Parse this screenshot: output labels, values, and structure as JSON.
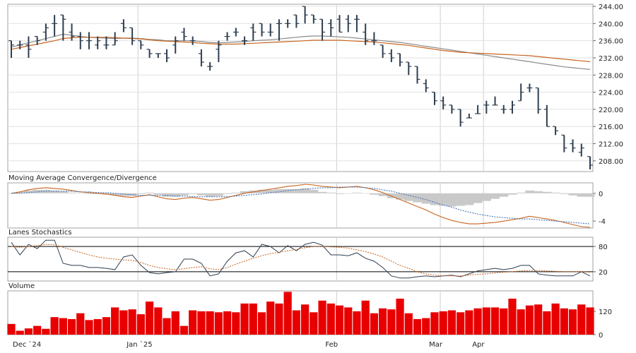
{
  "chart_data": [
    {
      "type": "ohlc",
      "panel": "price",
      "yticks": [
        208,
        212,
        216,
        220,
        224,
        228,
        232,
        236,
        240,
        244
      ],
      "ytick_labels": [
        "208.00",
        "212.00",
        "216.00",
        "220.00",
        "224.00",
        "228.00",
        "232.00",
        "236.00",
        "240.00",
        "244.00"
      ],
      "ylim": [
        205.5,
        244.5
      ],
      "xlabels": [
        "Dec `24",
        "Jan `25",
        "Feb",
        "Mar",
        "Apr"
      ],
      "xlabel_index": [
        0,
        15,
        38,
        50,
        55
      ],
      "bars": [
        [
          236,
          236,
          232,
          235
        ],
        [
          235,
          236,
          234,
          235
        ],
        [
          235,
          237,
          232,
          234
        ],
        [
          237,
          237,
          235,
          236
        ],
        [
          238,
          240,
          236,
          239
        ],
        [
          240,
          242,
          237,
          240
        ],
        [
          242,
          242,
          236,
          241
        ],
        [
          238,
          240,
          236,
          237
        ],
        [
          237,
          238,
          234,
          236
        ],
        [
          236,
          238,
          234,
          236
        ],
        [
          235,
          237,
          234,
          236
        ],
        [
          235,
          237,
          234,
          235
        ],
        [
          235,
          238,
          235,
          236
        ],
        [
          240,
          241,
          238,
          239
        ],
        [
          239,
          239,
          235,
          236
        ],
        [
          236,
          236,
          234,
          235
        ],
        [
          234,
          234,
          232,
          233
        ],
        [
          233,
          233,
          232,
          233
        ],
        [
          233,
          234,
          231,
          232
        ],
        [
          235,
          237,
          233,
          236
        ],
        [
          238,
          239,
          236,
          237
        ],
        [
          236,
          237,
          235,
          236
        ],
        [
          233,
          234,
          230,
          231
        ],
        [
          230,
          231,
          229,
          230
        ],
        [
          234,
          236,
          231,
          235
        ],
        [
          237,
          238,
          236,
          237
        ],
        [
          238,
          239,
          237,
          238
        ],
        [
          236,
          237,
          235,
          236
        ],
        [
          239,
          240,
          236,
          238
        ],
        [
          240,
          240,
          237,
          238
        ],
        [
          238,
          240,
          237,
          238
        ],
        [
          240,
          241,
          236,
          240
        ],
        [
          240,
          241,
          239,
          240
        ],
        [
          242,
          242,
          239,
          240
        ],
        [
          244,
          244,
          240,
          242
        ],
        [
          242,
          242,
          240,
          241
        ],
        [
          241,
          241,
          236,
          238
        ],
        [
          240,
          241,
          237,
          239
        ],
        [
          241,
          242,
          238,
          238
        ],
        [
          241,
          242,
          238,
          240
        ],
        [
          241,
          242,
          238,
          241
        ],
        [
          238,
          240,
          235,
          236
        ],
        [
          236,
          238,
          235,
          236
        ],
        [
          235,
          235,
          232,
          233
        ],
        [
          233,
          234,
          231,
          232
        ],
        [
          233,
          233,
          230,
          231
        ],
        [
          231,
          231,
          228,
          230
        ],
        [
          230,
          230,
          226,
          227
        ],
        [
          226,
          227,
          224,
          225
        ],
        [
          224,
          224,
          221,
          222
        ],
        [
          222,
          223,
          220,
          221
        ],
        [
          221,
          221,
          219,
          220
        ],
        [
          220,
          220,
          216,
          217
        ],
        [
          218,
          219,
          218,
          218
        ],
        [
          219,
          221,
          219,
          219
        ],
        [
          221,
          222,
          219,
          221
        ],
        [
          221,
          223,
          221,
          221
        ],
        [
          220,
          221,
          219,
          220
        ],
        [
          220,
          222,
          219,
          221
        ],
        [
          222,
          226,
          222,
          224
        ],
        [
          225,
          226,
          224,
          225
        ],
        [
          225,
          225,
          219,
          220
        ],
        [
          220,
          221,
          216,
          216
        ],
        [
          216,
          216,
          214,
          215
        ],
        [
          214,
          214,
          210,
          211
        ],
        [
          212,
          213,
          210,
          211
        ],
        [
          210,
          212,
          209,
          211
        ],
        [
          209,
          209,
          206,
          207
        ]
      ],
      "series": [
        {
          "values": [
            234.5,
            235.0,
            235.5,
            236.0,
            236.5,
            237.0,
            237.5,
            237.3,
            237.0,
            236.8,
            236.7,
            236.6,
            236.5,
            236.6,
            236.6,
            236.5,
            236.3,
            236.2,
            236.0,
            236.0,
            236.0,
            236.0,
            235.8,
            235.6,
            235.5,
            235.6,
            235.7,
            235.8,
            236.0,
            236.1,
            236.2,
            236.4,
            236.6,
            236.8,
            237.0,
            237.1,
            237.1,
            237.0,
            236.9,
            236.8,
            236.6,
            236.4,
            236.2,
            236.0,
            235.8,
            235.6,
            235.3,
            235.0,
            234.7,
            234.4,
            234.1,
            233.8,
            233.5,
            233.2,
            232.9,
            232.6,
            232.3,
            232.0,
            231.7,
            231.4,
            231.1,
            230.8,
            230.5,
            230.2,
            229.9,
            229.7,
            229.5,
            229.3
          ]
        },
        {
          "values": [
            234.0,
            234.4,
            234.8,
            235.2,
            235.6,
            236.0,
            236.5,
            236.7,
            236.8,
            236.8,
            236.8,
            236.8,
            236.7,
            236.6,
            236.5,
            236.4,
            236.2,
            236.0,
            235.9,
            235.8,
            235.7,
            235.6,
            235.4,
            235.3,
            235.2,
            235.2,
            235.2,
            235.3,
            235.4,
            235.5,
            235.6,
            235.7,
            235.8,
            235.9,
            236.0,
            236.1,
            236.1,
            236.1,
            236.1,
            236.0,
            235.9,
            235.8,
            235.7,
            235.5,
            235.3,
            235.1,
            234.9,
            234.6,
            234.3,
            234.0,
            233.7,
            233.5,
            233.3,
            233.2,
            233.1,
            233.0,
            232.9,
            232.8,
            232.7,
            232.6,
            232.5,
            232.3,
            232.1,
            231.9,
            231.7,
            231.5,
            231.3,
            231.1
          ]
        }
      ]
    },
    {
      "type": "line",
      "panel": "macd",
      "title": "Moving Average Convergence/Divergence",
      "yticks": [
        0,
        -4
      ],
      "ytick_labels": [
        "0",
        "-4"
      ],
      "ylim": [
        -5,
        1.5
      ],
      "series": [
        {
          "values": [
            0.0,
            0.2,
            0.5,
            0.7,
            0.8,
            0.7,
            0.6,
            0.4,
            0.2,
            0.1,
            0.0,
            -0.1,
            -0.3,
            -0.5,
            -0.6,
            -0.4,
            -0.2,
            -0.5,
            -0.8,
            -0.9,
            -0.7,
            -0.6,
            -0.8,
            -1.0,
            -0.9,
            -0.6,
            -0.3,
            0.0,
            0.2,
            0.4,
            0.6,
            0.8,
            1.0,
            1.1,
            1.3,
            1.2,
            1.0,
            0.9,
            0.8,
            0.9,
            1.0,
            0.8,
            0.5,
            0.1,
            -0.4,
            -0.9,
            -1.4,
            -1.9,
            -2.4,
            -3.0,
            -3.5,
            -3.9,
            -4.2,
            -4.4,
            -4.4,
            -4.3,
            -4.2,
            -4.0,
            -3.8,
            -3.6,
            -3.3,
            -3.5,
            -3.7,
            -3.9,
            -4.2,
            -4.5,
            -4.8,
            -4.9
          ]
        },
        {
          "values": [
            0.0,
            0.0,
            0.1,
            0.2,
            0.3,
            0.3,
            0.3,
            0.3,
            0.2,
            0.2,
            0.1,
            0.1,
            0.0,
            -0.1,
            -0.2,
            -0.3,
            -0.3,
            -0.3,
            -0.3,
            -0.4,
            -0.4,
            -0.5,
            -0.5,
            -0.5,
            -0.5,
            -0.5,
            -0.4,
            -0.3,
            -0.2,
            -0.1,
            0.1,
            0.2,
            0.4,
            0.5,
            0.6,
            0.7,
            0.8,
            0.8,
            0.9,
            0.9,
            0.9,
            0.8,
            0.7,
            0.5,
            0.3,
            0.0,
            -0.3,
            -0.6,
            -0.9,
            -1.3,
            -1.7,
            -2.0,
            -2.4,
            -2.7,
            -3.0,
            -3.2,
            -3.4,
            -3.5,
            -3.6,
            -3.7,
            -3.7,
            -3.8,
            -3.9,
            -4.0,
            -4.1,
            -4.2,
            -4.3,
            -4.4
          ]
        }
      ],
      "histogram": [
        0.0,
        0.2,
        0.4,
        0.5,
        0.5,
        0.4,
        0.3,
        0.1,
        0.0,
        -0.1,
        -0.1,
        -0.2,
        -0.3,
        -0.4,
        -0.4,
        -0.1,
        0.1,
        -0.2,
        -0.5,
        -0.5,
        -0.3,
        -0.1,
        -0.3,
        -0.5,
        -0.4,
        -0.1,
        0.1,
        0.3,
        0.4,
        0.5,
        0.5,
        0.6,
        0.6,
        0.6,
        0.7,
        0.5,
        0.2,
        0.1,
        -0.1,
        0.0,
        0.1,
        0.0,
        -0.2,
        -0.4,
        -0.7,
        -0.9,
        -1.1,
        -1.3,
        -1.5,
        -1.7,
        -1.8,
        -1.9,
        -1.8,
        -1.7,
        -1.4,
        -1.1,
        -0.8,
        -0.5,
        -0.2,
        0.1,
        0.4,
        0.3,
        0.2,
        0.1,
        -0.1,
        -0.3,
        -0.5,
        -0.5
      ]
    },
    {
      "type": "line",
      "panel": "stochastics",
      "title": "Lanes Stochastics",
      "yticks": [
        80,
        20
      ],
      "ytick_labels": [
        "80",
        "20"
      ],
      "ylim": [
        -2,
        102
      ],
      "series": [
        {
          "values": [
            90,
            60,
            85,
            75,
            95,
            95,
            40,
            35,
            35,
            30,
            30,
            28,
            25,
            55,
            60,
            35,
            18,
            15,
            18,
            20,
            50,
            50,
            40,
            10,
            15,
            45,
            65,
            70,
            55,
            85,
            80,
            65,
            82,
            70,
            85,
            90,
            83,
            60,
            60,
            58,
            65,
            52,
            45,
            30,
            10,
            5,
            5,
            8,
            10,
            8,
            10,
            12,
            8,
            15,
            22,
            25,
            28,
            25,
            28,
            35,
            35,
            15,
            12,
            10,
            10,
            10,
            20,
            10
          ]
        },
        {
          "values": [
            80,
            78,
            80,
            82,
            85,
            84,
            78,
            72,
            66,
            60,
            55,
            52,
            50,
            48,
            47,
            42,
            35,
            30,
            27,
            25,
            27,
            30,
            32,
            27,
            25,
            30,
            38,
            45,
            52,
            58,
            63,
            66,
            70,
            73,
            77,
            80,
            80,
            79,
            78,
            76,
            72,
            68,
            62,
            55,
            45,
            35,
            28,
            20,
            15,
            12,
            10,
            10,
            10,
            12,
            14,
            15,
            17,
            19,
            20,
            22,
            23,
            23,
            22,
            21,
            20,
            20,
            20,
            19
          ]
        }
      ]
    },
    {
      "type": "bar",
      "panel": "volume",
      "title": "Volume",
      "yticks": [
        120,
        0
      ],
      "ytick_labels": [
        "120",
        "0"
      ],
      "ylim": [
        0,
        225
      ],
      "values": [
        55,
        20,
        32,
        45,
        30,
        90,
        85,
        80,
        110,
        75,
        80,
        90,
        140,
        125,
        130,
        105,
        170,
        140,
        85,
        120,
        45,
        125,
        120,
        120,
        115,
        120,
        115,
        160,
        160,
        115,
        170,
        160,
        220,
        125,
        155,
        115,
        175,
        160,
        150,
        140,
        120,
        175,
        110,
        135,
        130,
        185,
        110,
        80,
        85,
        115,
        120,
        125,
        115,
        125,
        135,
        140,
        140,
        135,
        185,
        130,
        150,
        155,
        120,
        160,
        135,
        130,
        155,
        140
      ]
    }
  ]
}
